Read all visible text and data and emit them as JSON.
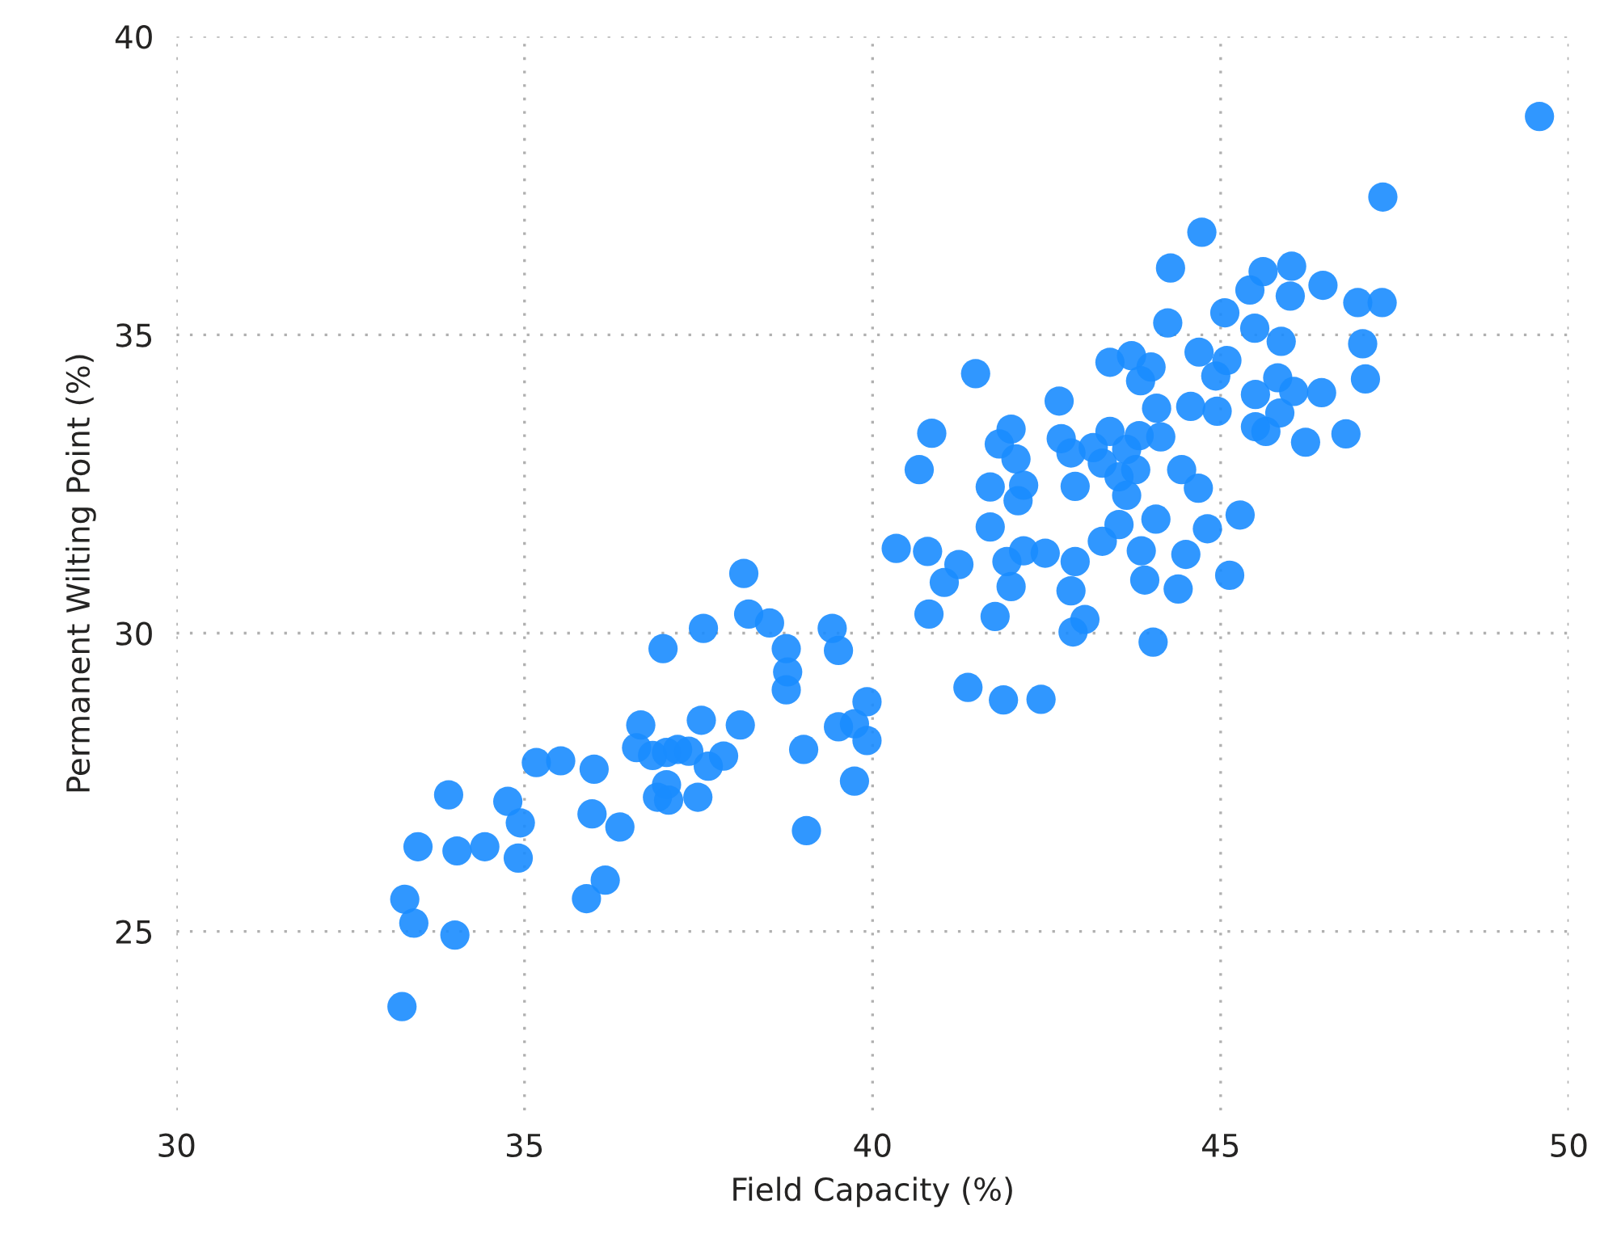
{
  "chart_data": {
    "type": "scatter",
    "xlabel": "Field Capacity (%)",
    "ylabel": "Permanent Wilting Point (%)",
    "xlim": [
      30,
      50
    ],
    "ylim": [
      22,
      40
    ],
    "xticks": [
      30,
      35,
      40,
      45,
      50
    ],
    "yticks": [
      25,
      30,
      35,
      40
    ],
    "grid": true,
    "marker": "circle",
    "series": [
      {
        "color": "#1a8cff",
        "x": [
          49.58,
          47.33,
          44.73,
          44.28,
          45.61,
          46.02,
          45.42,
          46.0,
          46.47,
          46.97,
          47.32,
          45.06,
          44.24,
          45.49,
          45.87,
          47.04,
          44.69,
          45.09,
          44.93,
          43.41,
          43.72,
          44.0,
          43.85,
          47.08,
          41.48,
          45.82,
          45.5,
          46.05,
          46.45,
          44.08,
          42.68,
          44.57,
          44.95,
          45.5,
          45.65,
          45.85,
          40.85,
          41.99,
          41.82,
          43.41,
          43.83,
          44.14,
          42.71,
          46.22,
          46.8,
          40.67,
          42.06,
          42.85,
          43.17,
          43.65,
          44.44,
          44.68,
          41.69,
          42.17,
          42.91,
          43.3,
          43.54,
          43.78,
          43.65,
          42.09,
          41.69,
          44.07,
          43.54,
          44.81,
          45.28,
          43.3,
          40.34,
          40.79,
          41.24,
          41.93,
          42.17,
          42.48,
          42.91,
          43.86,
          44.5,
          45.13,
          41.03,
          41.99,
          42.85,
          43.91,
          44.39,
          40.81,
          41.76,
          43.05,
          42.88,
          44.03,
          41.37,
          41.88,
          42.42,
          38.15,
          38.22,
          38.52,
          36.99,
          37.57,
          38.76,
          38.78,
          38.76,
          39.42,
          39.51,
          39.92,
          39.51,
          39.74,
          39.92,
          39.01,
          39.74,
          39.05,
          36.67,
          36.61,
          36.84,
          37.04,
          37.2,
          37.36,
          37.54,
          38.1,
          37.86,
          37.64,
          37.04,
          36.91,
          37.07,
          37.49,
          35.17,
          35.52,
          36.0,
          35.97,
          36.37,
          36.16,
          35.89,
          33.91,
          34.76,
          34.94,
          34.91,
          33.47,
          34.03,
          34.43,
          33.28,
          33.41,
          34.0,
          33.24
        ],
        "values": [
          38.66,
          37.31,
          36.72,
          36.12,
          36.06,
          36.15,
          35.75,
          35.65,
          35.83,
          35.54,
          35.54,
          35.37,
          35.2,
          35.11,
          34.89,
          34.85,
          34.71,
          34.57,
          34.31,
          34.54,
          34.65,
          34.46,
          34.23,
          34.26,
          34.35,
          34.28,
          34.0,
          34.05,
          34.03,
          33.77,
          33.89,
          33.8,
          33.72,
          33.46,
          33.38,
          33.69,
          33.35,
          33.42,
          33.17,
          33.38,
          33.31,
          33.29,
          33.26,
          33.2,
          33.34,
          32.74,
          32.92,
          33.02,
          33.11,
          33.08,
          32.74,
          32.43,
          32.45,
          32.48,
          32.46,
          32.85,
          32.62,
          32.74,
          32.31,
          32.22,
          31.78,
          31.91,
          31.82,
          31.75,
          31.98,
          31.54,
          31.42,
          31.37,
          31.15,
          31.2,
          31.38,
          31.34,
          31.2,
          31.38,
          31.32,
          30.97,
          30.85,
          30.78,
          30.71,
          30.89,
          30.74,
          30.32,
          30.28,
          30.23,
          30.02,
          29.85,
          29.09,
          28.88,
          28.89,
          31.0,
          30.32,
          30.17,
          29.74,
          30.08,
          29.74,
          29.35,
          29.05,
          30.08,
          29.71,
          28.85,
          28.43,
          28.48,
          28.2,
          28.05,
          27.52,
          26.69,
          28.46,
          28.08,
          27.95,
          28.0,
          28.05,
          28.02,
          28.54,
          28.46,
          27.94,
          27.77,
          27.46,
          27.25,
          27.2,
          27.25,
          27.83,
          27.86,
          27.72,
          26.97,
          26.75,
          25.86,
          25.55,
          27.29,
          27.18,
          26.82,
          26.23,
          26.42,
          26.35,
          26.42,
          25.54,
          25.14,
          24.94,
          23.74
        ]
      }
    ]
  }
}
